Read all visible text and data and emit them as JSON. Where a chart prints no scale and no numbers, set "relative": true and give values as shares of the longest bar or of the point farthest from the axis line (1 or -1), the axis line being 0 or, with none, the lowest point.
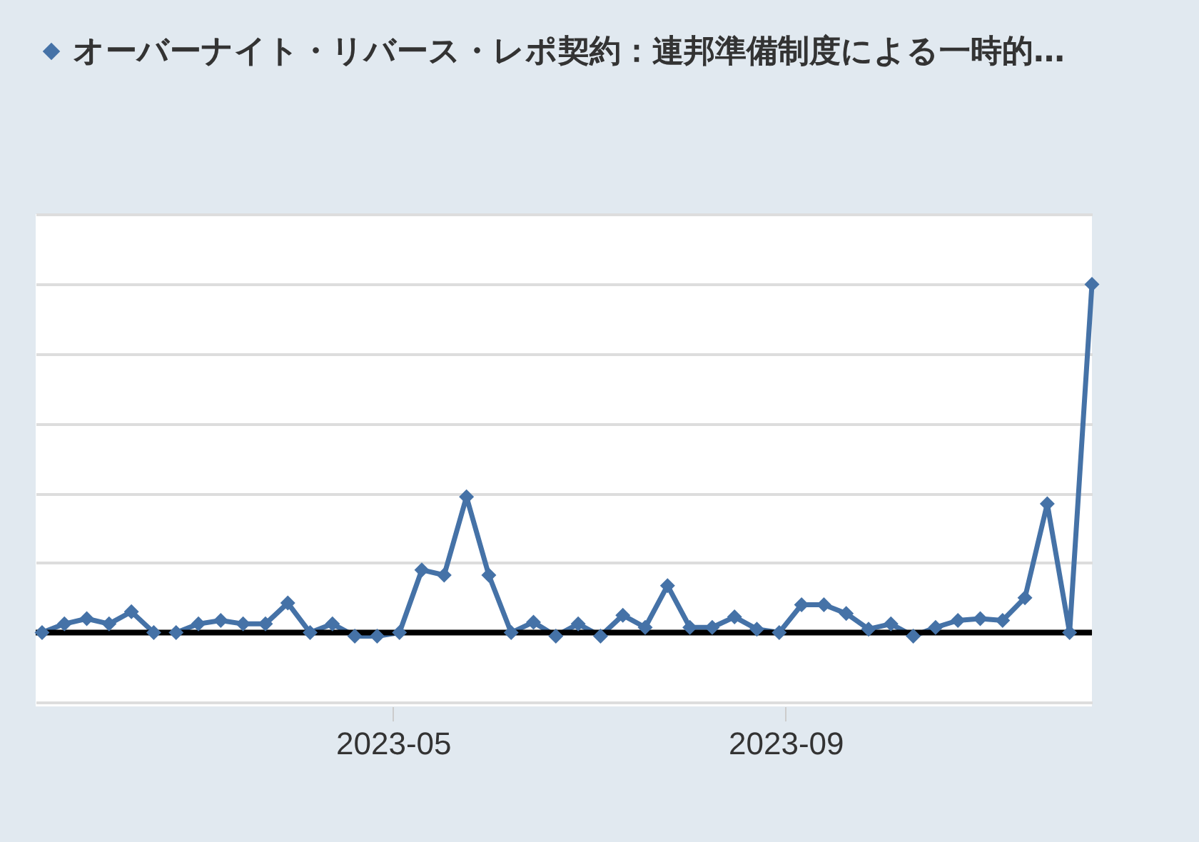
{
  "chart_data": {
    "type": "line",
    "relative": true,
    "x": [
      "2023-01-11",
      "2023-01-18",
      "2023-01-25",
      "2023-02-01",
      "2023-02-08",
      "2023-02-15",
      "2023-02-22",
      "2023-03-01",
      "2023-03-08",
      "2023-03-15",
      "2023-03-22",
      "2023-03-29",
      "2023-04-05",
      "2023-04-12",
      "2023-04-19",
      "2023-04-26",
      "2023-05-03",
      "2023-05-10",
      "2023-05-17",
      "2023-05-24",
      "2023-05-31",
      "2023-06-07",
      "2023-06-14",
      "2023-06-21",
      "2023-06-28",
      "2023-07-05",
      "2023-07-12",
      "2023-07-19",
      "2023-07-26",
      "2023-08-02",
      "2023-08-09",
      "2023-08-16",
      "2023-08-23",
      "2023-08-30",
      "2023-09-06",
      "2023-09-13",
      "2023-09-20",
      "2023-09-27",
      "2023-10-04",
      "2023-10-11",
      "2023-10-18",
      "2023-10-25",
      "2023-11-01",
      "2023-11-08",
      "2023-11-15",
      "2023-11-22",
      "2023-11-29",
      "2023-12-06"
    ],
    "series": [
      {
        "name": "オーバーナイト・リバース・レポ契約：連邦準備制度による一時的…",
        "color": "#4572a7",
        "values": [
          0.0,
          0.025,
          0.04,
          0.025,
          0.06,
          0.0,
          0.0,
          0.025,
          0.035,
          0.025,
          0.025,
          0.085,
          0.0,
          0.025,
          -0.01,
          -0.01,
          0.0,
          0.18,
          0.165,
          0.39,
          0.165,
          0.0,
          0.03,
          -0.01,
          0.025,
          -0.01,
          0.05,
          0.015,
          0.135,
          0.015,
          0.015,
          0.045,
          0.01,
          0.0,
          0.08,
          0.08,
          0.055,
          0.01,
          0.025,
          -0.01,
          0.015,
          0.035,
          0.04,
          0.035,
          0.1,
          0.37,
          0.0,
          1.0
        ]
      }
    ],
    "xlim": [
      "2023-01-09",
      "2023-12-06"
    ],
    "xticks": [
      "2023-05",
      "2023-09"
    ],
    "grid": "y",
    "legend": "top left",
    "marker": "diamond",
    "line_style": "solid"
  }
}
